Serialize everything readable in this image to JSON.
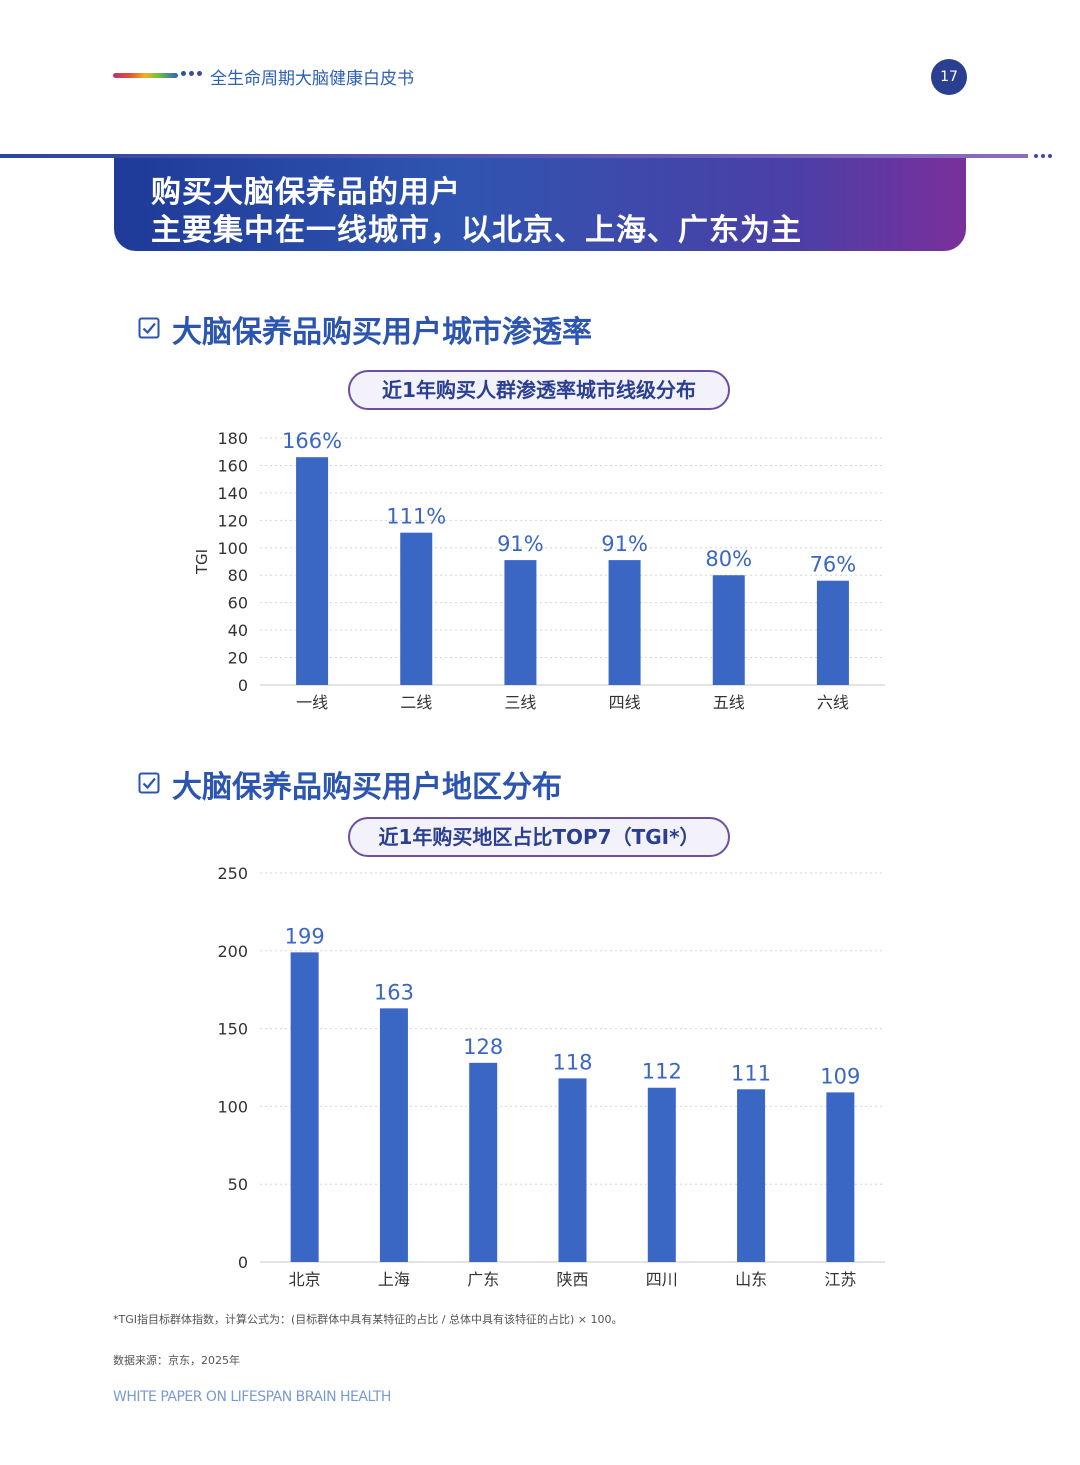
{
  "header": {
    "title": "全生命周期大脑健康白皮书",
    "page_number": "17"
  },
  "banner": {
    "line1": "购买大脑保养品的用户",
    "line2": "主要集中在一线城市，以北京、上海、广东为主"
  },
  "section1": {
    "title": "大脑保养品购买用户城市渗透率",
    "pill": "近1年购买人群渗透率城市线级分布"
  },
  "section2": {
    "title": "大脑保养品购买用户地区分布",
    "pill": "近1年购买地区占比TOP7（TGI*）"
  },
  "chart_data": [
    {
      "type": "bar",
      "categories": [
        "一线",
        "二线",
        "三线",
        "四线",
        "五线",
        "六线"
      ],
      "values": [
        166,
        111,
        91,
        91,
        80,
        76
      ],
      "data_labels": [
        "166%",
        "111%",
        "91%",
        "91%",
        "80%",
        "76%"
      ],
      "ylabel": "TGI",
      "ylim": [
        0,
        180
      ],
      "yticks": [
        0,
        20,
        40,
        60,
        80,
        100,
        120,
        140,
        160,
        180
      ],
      "grid": true,
      "bar_color": "#3a66c4",
      "label_color": "#3a66c4"
    },
    {
      "type": "bar",
      "categories": [
        "北京",
        "上海",
        "广东",
        "陕西",
        "四川",
        "山东",
        "江苏"
      ],
      "values": [
        199,
        163,
        128,
        118,
        112,
        111,
        109
      ],
      "data_labels": [
        "199",
        "163",
        "128",
        "118",
        "112",
        "111",
        "109"
      ],
      "ylabel": "",
      "ylim": [
        0,
        250
      ],
      "yticks": [
        0,
        50,
        100,
        150,
        200,
        250
      ],
      "grid": true,
      "bar_color": "#3a66c4",
      "label_color": "#3a66c4"
    }
  ],
  "footer": {
    "note": "*TGI指目标群体指数，计算公式为：(目标群体中具有某特征的占比 / 总体中具有该特征的占比) × 100。",
    "source": "数据来源：京东，2025年",
    "english_title": "WHITE PAPER ON LIFESPAN BRAIN HEALTH"
  },
  "colors": {
    "primary_blue": "#2c55b0",
    "bar_blue": "#3a66c4",
    "page_badge": "#2a3f8f",
    "pill_border": "#6c4fa2"
  }
}
